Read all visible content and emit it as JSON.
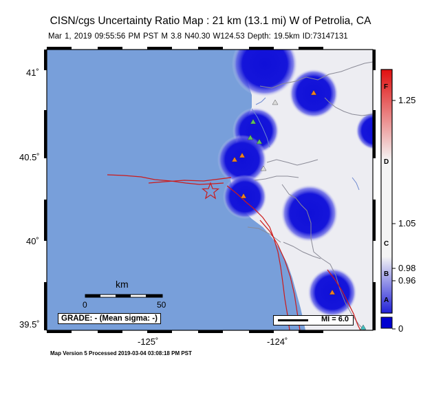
{
  "header": {
    "title": "CISN/cgs Uncertainty Ratio Map : 21 km (13.1 mi) W of Petrolia, CA",
    "subtitle": "Mar  1, 2019 09:55:56 PM PST   M 3.8   N40.30 W124.53   Depth: 19.5km   ID:73147131"
  },
  "map": {
    "lat_labels": [
      "41˚",
      "40.5˚",
      "40˚",
      "39.5˚"
    ],
    "lon_labels": [
      "-125˚",
      "-124˚"
    ],
    "ocean_color": "#789fda",
    "land_color": "#ededf2",
    "fault_color": "#cc1a1a",
    "epicenter_icon": "star-outline-icon"
  },
  "scale_bar": {
    "unit": "km",
    "start": "0",
    "end": "50"
  },
  "grade": {
    "text": "GRADE: - (Mean sigma: -)"
  },
  "legend": {
    "mi_text": "MI = 6.0"
  },
  "colorbar": {
    "ticks": [
      "1.25",
      "1.05",
      "0.98",
      "0.96",
      "0"
    ],
    "letters": [
      "F",
      "D",
      "C",
      "B",
      "A"
    ],
    "colors": {
      "top": "#e01010",
      "middle": "#f4f4f4",
      "bottom": "#2020d8",
      "base": "#0000d0"
    }
  },
  "footer": {
    "text": "Map Version 5 Processed 2019-03-04 03:08:18 PM PST"
  }
}
